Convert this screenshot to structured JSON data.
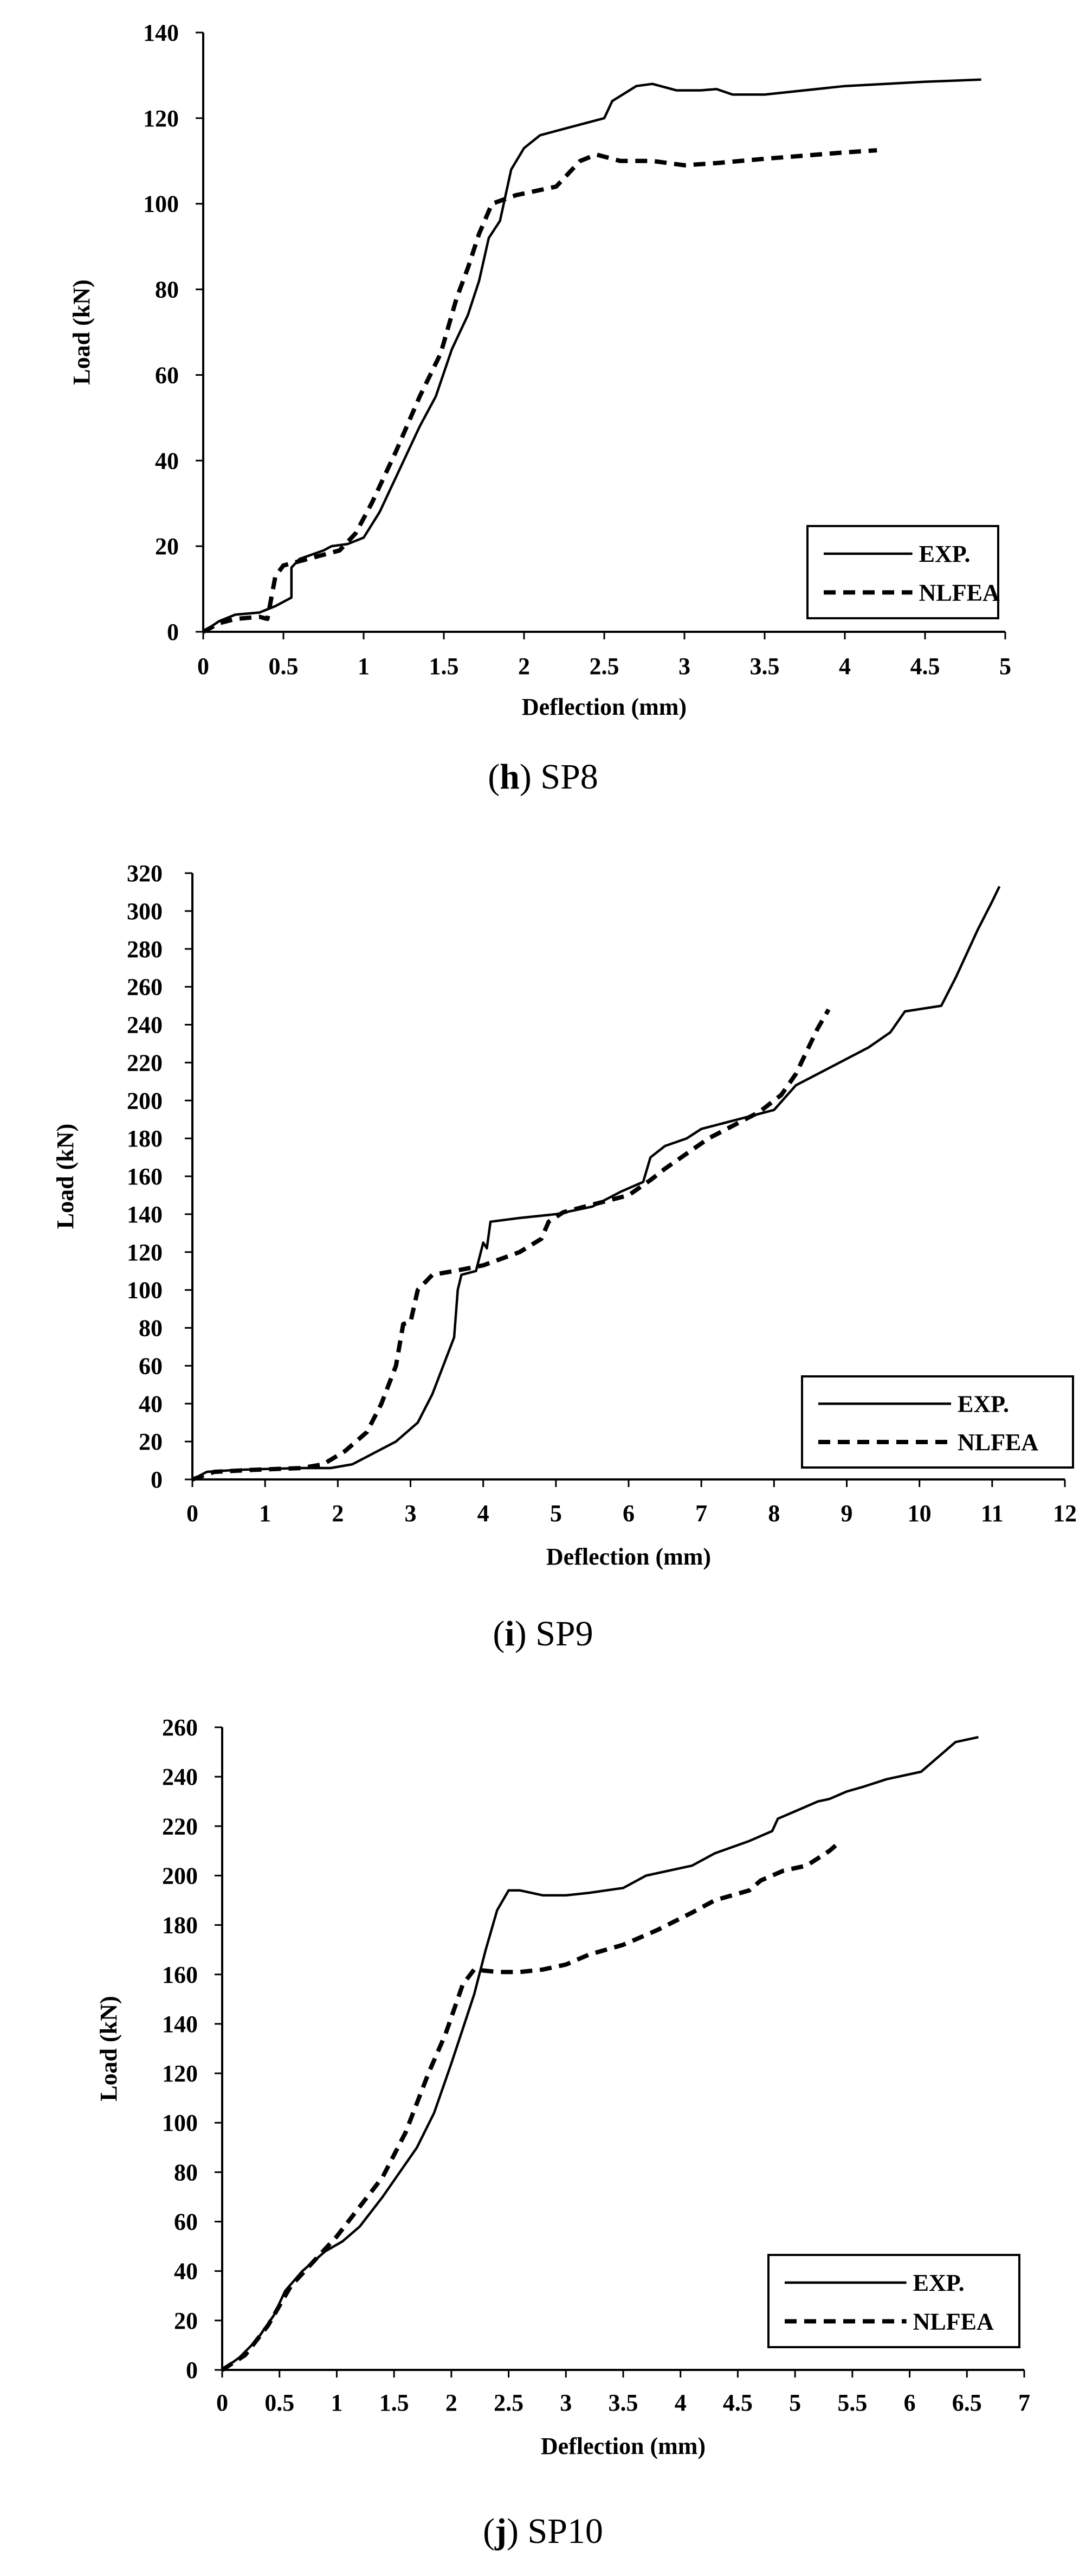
{
  "chart_data": [
    {
      "type": "line",
      "caption_letter": "h",
      "caption_name": "SP8",
      "xlabel": "Deflection (mm)",
      "ylabel": "Load (kN)",
      "xlim": [
        0,
        5
      ],
      "ylim": [
        0,
        140
      ],
      "x_ticks": [
        "0",
        "0.5",
        "1",
        "1.5",
        "2",
        "2.5",
        "3",
        "3.5",
        "4",
        "4.5",
        "5"
      ],
      "y_ticks": [
        "0",
        "20",
        "40",
        "60",
        "80",
        "100",
        "120",
        "140"
      ],
      "legend": [
        "EXP.",
        "NLFEA"
      ],
      "series": [
        {
          "name": "EXP.",
          "style": "solid",
          "points": [
            [
              0,
              0
            ],
            [
              0.1,
              2.5
            ],
            [
              0.2,
              4
            ],
            [
              0.35,
              4.5
            ],
            [
              0.45,
              6
            ],
            [
              0.55,
              8
            ],
            [
              0.55,
              15
            ],
            [
              0.6,
              17
            ],
            [
              0.75,
              19
            ],
            [
              0.8,
              20
            ],
            [
              0.9,
              20.5
            ],
            [
              1.0,
              22
            ],
            [
              1.1,
              28
            ],
            [
              1.2,
              36
            ],
            [
              1.3,
              44
            ],
            [
              1.35,
              48
            ],
            [
              1.45,
              55
            ],
            [
              1.55,
              66
            ],
            [
              1.65,
              74
            ],
            [
              1.72,
              82
            ],
            [
              1.78,
              92
            ],
            [
              1.85,
              96
            ],
            [
              1.92,
              108
            ],
            [
              2.0,
              113
            ],
            [
              2.1,
              116
            ],
            [
              2.3,
              118
            ],
            [
              2.5,
              120
            ],
            [
              2.55,
              124
            ],
            [
              2.7,
              127.5
            ],
            [
              2.8,
              128
            ],
            [
              2.95,
              126.5
            ],
            [
              3.1,
              126.5
            ],
            [
              3.2,
              126.8
            ],
            [
              3.3,
              125.5
            ],
            [
              3.5,
              125.5
            ],
            [
              4.0,
              127.5
            ],
            [
              4.5,
              128.5
            ],
            [
              4.85,
              129
            ]
          ]
        },
        {
          "name": "NLFEA",
          "style": "dashed",
          "points": [
            [
              0,
              0
            ],
            [
              0.1,
              2
            ],
            [
              0.2,
              3
            ],
            [
              0.35,
              3.5
            ],
            [
              0.4,
              3
            ],
            [
              0.45,
              13
            ],
            [
              0.5,
              15.5
            ],
            [
              0.7,
              17.5
            ],
            [
              0.85,
              19
            ],
            [
              0.95,
              23
            ],
            [
              1.05,
              30
            ],
            [
              1.2,
              42
            ],
            [
              1.35,
              55
            ],
            [
              1.48,
              65
            ],
            [
              1.58,
              78
            ],
            [
              1.65,
              85
            ],
            [
              1.72,
              93
            ],
            [
              1.8,
              100
            ],
            [
              1.95,
              102
            ],
            [
              2.2,
              104
            ],
            [
              2.35,
              110
            ],
            [
              2.45,
              111.5
            ],
            [
              2.6,
              110
            ],
            [
              2.8,
              110
            ],
            [
              3.0,
              109
            ],
            [
              3.2,
              109.5
            ],
            [
              3.5,
              110.5
            ],
            [
              4.0,
              112
            ],
            [
              4.2,
              112.5
            ]
          ]
        }
      ]
    },
    {
      "type": "line",
      "caption_letter": "i",
      "caption_name": "SP9",
      "xlabel": "Deflection (mm)",
      "ylabel": "Load (kN)",
      "xlim": [
        0,
        12
      ],
      "ylim": [
        0,
        320
      ],
      "x_ticks": [
        "0",
        "1",
        "2",
        "3",
        "4",
        "5",
        "6",
        "7",
        "8",
        "9",
        "10",
        "11",
        "12"
      ],
      "y_ticks": [
        "0",
        "20",
        "40",
        "60",
        "80",
        "100",
        "120",
        "140",
        "160",
        "180",
        "200",
        "220",
        "240",
        "260",
        "280",
        "300",
        "320"
      ],
      "legend": [
        "EXP.",
        "NLFEA"
      ],
      "series": [
        {
          "name": "EXP.",
          "style": "solid",
          "points": [
            [
              0,
              0
            ],
            [
              0.2,
              4
            ],
            [
              0.6,
              5
            ],
            [
              1.0,
              5.5
            ],
            [
              1.5,
              6
            ],
            [
              1.9,
              6
            ],
            [
              2.2,
              8
            ],
            [
              2.5,
              14
            ],
            [
              2.8,
              20
            ],
            [
              3.1,
              30
            ],
            [
              3.3,
              45
            ],
            [
              3.5,
              65
            ],
            [
              3.6,
              75
            ],
            [
              3.65,
              100
            ],
            [
              3.7,
              108
            ],
            [
              3.9,
              110
            ],
            [
              4.0,
              125
            ],
            [
              4.05,
              122
            ],
            [
              4.1,
              136
            ],
            [
              4.5,
              138
            ],
            [
              5.0,
              140
            ],
            [
              5.5,
              144
            ],
            [
              5.9,
              152
            ],
            [
              6.2,
              157
            ],
            [
              6.3,
              170
            ],
            [
              6.5,
              176
            ],
            [
              6.8,
              180
            ],
            [
              7.0,
              185
            ],
            [
              7.5,
              190
            ],
            [
              8.0,
              195
            ],
            [
              8.3,
              208
            ],
            [
              8.8,
              218
            ],
            [
              9.3,
              228
            ],
            [
              9.6,
              236
            ],
            [
              9.8,
              247
            ],
            [
              10.3,
              250
            ],
            [
              10.5,
              265
            ],
            [
              10.8,
              290
            ],
            [
              11.0,
              305
            ],
            [
              11.1,
              313
            ]
          ]
        },
        {
          "name": "NLFEA",
          "style": "dashed",
          "points": [
            [
              0,
              0
            ],
            [
              0.3,
              4
            ],
            [
              0.8,
              5
            ],
            [
              1.5,
              6
            ],
            [
              1.8,
              8
            ],
            [
              2.1,
              15
            ],
            [
              2.4,
              25
            ],
            [
              2.6,
              40
            ],
            [
              2.8,
              60
            ],
            [
              2.9,
              82
            ],
            [
              3.0,
              83
            ],
            [
              3.1,
              100
            ],
            [
              3.3,
              108
            ],
            [
              3.6,
              110
            ],
            [
              4.0,
              113
            ],
            [
              4.5,
              120
            ],
            [
              4.8,
              127
            ],
            [
              4.9,
              136
            ],
            [
              5.1,
              141
            ],
            [
              5.5,
              145
            ],
            [
              6.0,
              150
            ],
            [
              6.3,
              158
            ],
            [
              6.5,
              164
            ],
            [
              6.8,
              172
            ],
            [
              7.1,
              180
            ],
            [
              7.5,
              188
            ],
            [
              7.8,
              194
            ],
            [
              8.1,
              203
            ],
            [
              8.3,
              214
            ],
            [
              8.6,
              238
            ],
            [
              8.75,
              248
            ]
          ]
        }
      ]
    },
    {
      "type": "line",
      "caption_letter": "j",
      "caption_name": "SP10",
      "xlabel": "Deflection (mm)",
      "ylabel": "Load (kN)",
      "xlim": [
        0,
        7
      ],
      "ylim": [
        0,
        260
      ],
      "x_ticks": [
        "0",
        "0.5",
        "1",
        "1.5",
        "2",
        "2.5",
        "3",
        "3.5",
        "4",
        "4.5",
        "5",
        "5.5",
        "6",
        "6.5",
        "7"
      ],
      "y_ticks": [
        "0",
        "20",
        "40",
        "60",
        "80",
        "100",
        "120",
        "140",
        "160",
        "180",
        "200",
        "220",
        "240",
        "260"
      ],
      "legend": [
        "EXP.",
        "NLFEA"
      ],
      "series": [
        {
          "name": "EXP.",
          "style": "solid",
          "points": [
            [
              0,
              0
            ],
            [
              0.15,
              5
            ],
            [
              0.3,
              12
            ],
            [
              0.45,
              22
            ],
            [
              0.55,
              32
            ],
            [
              0.7,
              40
            ],
            [
              0.9,
              48
            ],
            [
              1.05,
              52
            ],
            [
              1.2,
              58
            ],
            [
              1.4,
              70
            ],
            [
              1.55,
              80
            ],
            [
              1.7,
              90
            ],
            [
              1.85,
              104
            ],
            [
              2.0,
              124
            ],
            [
              2.1,
              138
            ],
            [
              2.2,
              152
            ],
            [
              2.3,
              170
            ],
            [
              2.4,
              186
            ],
            [
              2.5,
              194
            ],
            [
              2.6,
              194
            ],
            [
              2.8,
              192
            ],
            [
              3.0,
              192
            ],
            [
              3.2,
              193
            ],
            [
              3.5,
              195
            ],
            [
              3.7,
              200
            ],
            [
              3.9,
              202
            ],
            [
              4.1,
              204
            ],
            [
              4.3,
              209
            ],
            [
              4.6,
              214
            ],
            [
              4.8,
              218
            ],
            [
              4.85,
              223
            ],
            [
              5.0,
              226
            ],
            [
              5.2,
              230
            ],
            [
              5.3,
              231
            ],
            [
              5.45,
              234
            ],
            [
              5.6,
              236
            ],
            [
              5.8,
              239
            ],
            [
              6.1,
              242
            ],
            [
              6.25,
              248
            ],
            [
              6.4,
              254
            ],
            [
              6.6,
              256
            ]
          ]
        },
        {
          "name": "NLFEA",
          "style": "dashed",
          "points": [
            [
              0,
              0
            ],
            [
              0.2,
              6
            ],
            [
              0.4,
              18
            ],
            [
              0.6,
              34
            ],
            [
              0.8,
              44
            ],
            [
              1.0,
              54
            ],
            [
              1.2,
              66
            ],
            [
              1.4,
              78
            ],
            [
              1.6,
              96
            ],
            [
              1.8,
              120
            ],
            [
              1.95,
              136
            ],
            [
              2.1,
              156
            ],
            [
              2.2,
              162
            ],
            [
              2.4,
              161
            ],
            [
              2.6,
              161
            ],
            [
              2.8,
              162
            ],
            [
              3.0,
              164
            ],
            [
              3.2,
              168
            ],
            [
              3.5,
              172
            ],
            [
              3.8,
              178
            ],
            [
              4.1,
              185
            ],
            [
              4.3,
              190
            ],
            [
              4.6,
              194
            ],
            [
              4.7,
              198
            ],
            [
              4.9,
              202
            ],
            [
              5.1,
              204
            ],
            [
              5.2,
              207
            ],
            [
              5.3,
              210
            ],
            [
              5.4,
              214
            ]
          ]
        }
      ]
    }
  ]
}
